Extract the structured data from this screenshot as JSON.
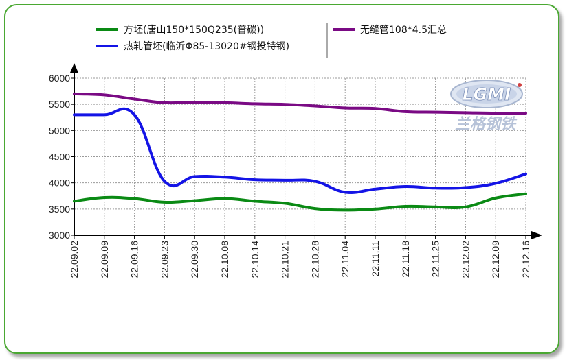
{
  "chart_data": {
    "type": "line",
    "categories": [
      "22.09.02",
      "22.09.09",
      "22.09.16",
      "22.09.23",
      "22.09.30",
      "22.10.08",
      "22.10.14",
      "22.10.21",
      "22.10.28",
      "22.11.04",
      "22.11.11",
      "22.11.18",
      "22.11.25",
      "22.12.02",
      "22.12.09",
      "22.12.16"
    ],
    "ylim": [
      3000,
      6000
    ],
    "yticks": [
      3000,
      3500,
      4000,
      4500,
      5000,
      5500,
      6000
    ],
    "grid": true,
    "legend_position": "top",
    "logo": "LGMI 兰格钢铁",
    "series": [
      {
        "name": "方坯(唐山150*150Q235(普碳))",
        "color": "#0a8a14",
        "values": [
          3650,
          3720,
          3700,
          3630,
          3660,
          3700,
          3650,
          3610,
          3510,
          3480,
          3500,
          3550,
          3540,
          3540,
          3710,
          3790
        ]
      },
      {
        "name": "热轧管坯(临沂Φ85-13020#钢投特钢)",
        "color": "#1414e6",
        "values": [
          5300,
          5300,
          5300,
          4030,
          4120,
          4110,
          4060,
          4050,
          4030,
          3820,
          3880,
          3930,
          3900,
          3910,
          3990,
          4170
        ]
      },
      {
        "name": "无缝管108*4.5汇总",
        "color": "#7a0a84",
        "values": [
          5700,
          5680,
          5600,
          5530,
          5540,
          5530,
          5510,
          5500,
          5470,
          5430,
          5420,
          5360,
          5350,
          5340,
          5330,
          5330
        ]
      }
    ]
  }
}
